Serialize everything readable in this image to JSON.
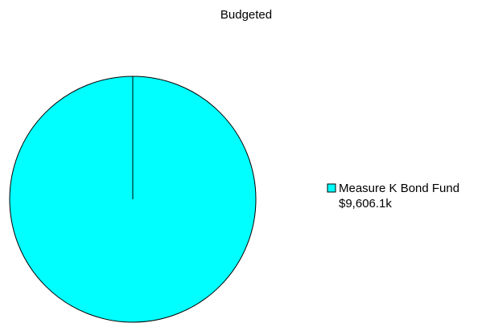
{
  "chart_data": {
    "type": "pie",
    "title": "Budgeted",
    "legend_position": "right",
    "slices": [
      {
        "label": "Measure K Bond Fund",
        "value_label": "$9,606.1k",
        "value": 9606.1,
        "color": "#00ffff"
      }
    ]
  }
}
